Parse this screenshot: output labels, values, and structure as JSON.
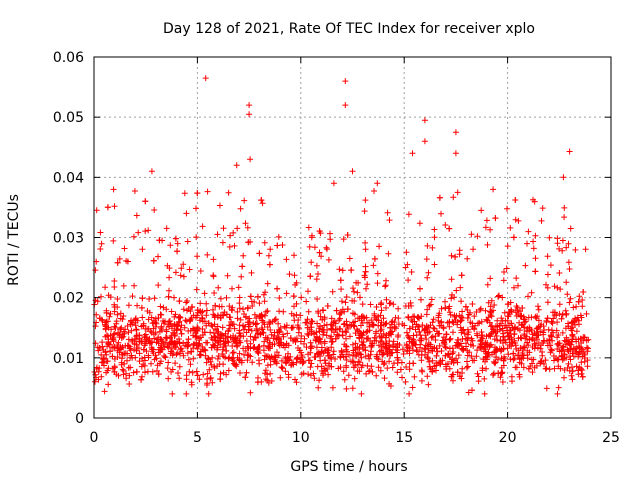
{
  "chart_data": {
    "type": "scatter",
    "title": "Day 128 of 2021, Rate Of TEC Index for receiver xplo",
    "xlabel": "GPS time / hours",
    "ylabel": "ROTI / TECUs",
    "xlim": [
      0,
      25
    ],
    "ylim": [
      0,
      0.06
    ],
    "x_ticks": [
      0,
      5,
      10,
      15,
      20,
      25
    ],
    "x_tick_labels": [
      "0",
      "5",
      "10",
      "15",
      "20",
      "25"
    ],
    "y_ticks": [
      0,
      0.01,
      0.02,
      0.03,
      0.04,
      0.05,
      0.06
    ],
    "y_tick_labels": [
      "0",
      "0.01",
      "0.02",
      "0.03",
      "0.04",
      "0.05",
      "0.06"
    ],
    "grid": true,
    "marker": "plus",
    "color": "#ff0000",
    "series": [
      {
        "name": "ROTI",
        "x_range": [
          0.0,
          23.95
        ],
        "typical_range": [
          0.006,
          0.025
        ],
        "central_value": 0.013,
        "notable_points": [
          {
            "x": 0.95,
            "y": 0.038
          },
          {
            "x": 2.8,
            "y": 0.041
          },
          {
            "x": 5.4,
            "y": 0.0565
          },
          {
            "x": 6.9,
            "y": 0.042
          },
          {
            "x": 7.5,
            "y": 0.052
          },
          {
            "x": 7.5,
            "y": 0.0505
          },
          {
            "x": 7.55,
            "y": 0.043
          },
          {
            "x": 11.6,
            "y": 0.039
          },
          {
            "x": 12.15,
            "y": 0.056
          },
          {
            "x": 12.15,
            "y": 0.052
          },
          {
            "x": 12.5,
            "y": 0.041
          },
          {
            "x": 13.7,
            "y": 0.039
          },
          {
            "x": 15.4,
            "y": 0.044
          },
          {
            "x": 16.0,
            "y": 0.0495
          },
          {
            "x": 16.0,
            "y": 0.046
          },
          {
            "x": 17.5,
            "y": 0.0475
          },
          {
            "x": 17.5,
            "y": 0.044
          },
          {
            "x": 19.3,
            "y": 0.038
          },
          {
            "x": 22.7,
            "y": 0.04
          },
          {
            "x": 23.0,
            "y": 0.0443
          }
        ]
      }
    ]
  }
}
